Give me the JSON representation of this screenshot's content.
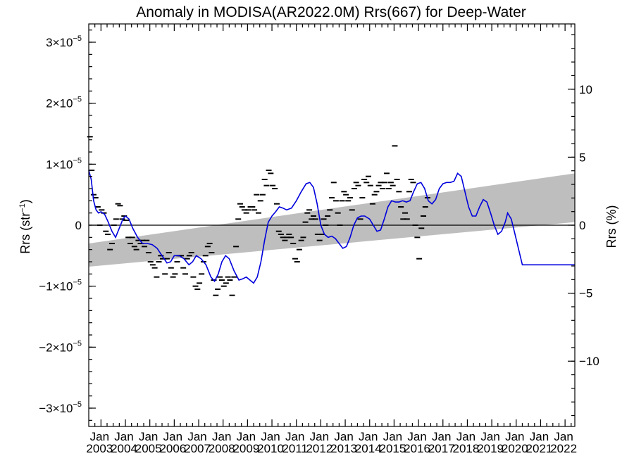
{
  "chart_data": {
    "type": "line",
    "title": "Anomaly in MODISA(AR2022.0M) Rrs(667) for Deep-Water",
    "ylabel": "Rrs (str",
    "ylabel_sup": "−1",
    "ylabel_close": ")",
    "y2label": "Rrs (%)",
    "xlim": [
      2002.5,
      2022.4
    ],
    "ylim": [
      -3.3e-05,
      3.3e-05
    ],
    "y2lim": [
      -14.8,
      14.8
    ],
    "y_ticks": [
      {
        "value": 3e-05,
        "mant": "3×10",
        "exp": "−5"
      },
      {
        "value": 2e-05,
        "mant": "2×10",
        "exp": "−5"
      },
      {
        "value": 1e-05,
        "mant": "1×10",
        "exp": "−5"
      },
      {
        "value": 0,
        "mant": "0",
        "exp": ""
      },
      {
        "value": -1e-05,
        "mant": "−1×10",
        "exp": "−5"
      },
      {
        "value": -2e-05,
        "mant": "−2×10",
        "exp": "−5"
      },
      {
        "value": -3e-05,
        "mant": "−3×10",
        "exp": "−5"
      }
    ],
    "y2_ticks": [
      {
        "value": 10,
        "label": "10"
      },
      {
        "value": 5,
        "label": "5"
      },
      {
        "value": 0,
        "label": "0"
      },
      {
        "value": -5,
        "label": "−5"
      },
      {
        "value": -10,
        "label": "−10"
      }
    ],
    "x_ticks": [
      {
        "value": 2003,
        "month": "Jan",
        "year": "2003"
      },
      {
        "value": 2004,
        "month": "Jan",
        "year": "2004"
      },
      {
        "value": 2005,
        "month": "Jan",
        "year": "2005"
      },
      {
        "value": 2006,
        "month": "Jan",
        "year": "2006"
      },
      {
        "value": 2007,
        "month": "Jan",
        "year": "2007"
      },
      {
        "value": 2008,
        "month": "Jan",
        "year": "2008"
      },
      {
        "value": 2009,
        "month": "Jan",
        "year": "2009"
      },
      {
        "value": 2010,
        "month": "Jan",
        "year": "2010"
      },
      {
        "value": 2011,
        "month": "Jan",
        "year": "2011"
      },
      {
        "value": 2012,
        "month": "Jan",
        "year": "2012"
      },
      {
        "value": 2013,
        "month": "Jan",
        "year": "2013"
      },
      {
        "value": 2014,
        "month": "Jan",
        "year": "2014"
      },
      {
        "value": 2015,
        "month": "Jan",
        "year": "2015"
      },
      {
        "value": 2016,
        "month": "Jan",
        "year": "2016"
      },
      {
        "value": 2017,
        "month": "Jan",
        "year": "2017"
      },
      {
        "value": 2018,
        "month": "Jan",
        "year": "2018"
      },
      {
        "value": 2019,
        "month": "Jan",
        "year": "2019"
      },
      {
        "value": 2020,
        "month": "Jan",
        "year": "2020"
      },
      {
        "value": 2021,
        "month": "Jan",
        "year": "2021"
      },
      {
        "value": 2022,
        "month": "Jan",
        "year": "2022"
      }
    ],
    "trend_band": {
      "x": [
        2002.5,
        2022.4
      ],
      "upper": [
        -3e-06,
        8.5e-06
      ],
      "lower": [
        -6.8e-06,
        5e-07
      ],
      "color": "#bebebe"
    },
    "zero_line": 0,
    "smoothed_series": {
      "color": "#0000dd",
      "points": [
        [
          2002.5,
          9e-06
        ],
        [
          2002.6,
          7.5e-06
        ],
        [
          2002.7,
          4e-06
        ],
        [
          2002.8,
          2.5e-06
        ],
        [
          2002.9,
          2e-06
        ],
        [
          2003.0,
          2.2e-06
        ],
        [
          2003.15,
          1.8e-06
        ],
        [
          2003.3,
          5e-07
        ],
        [
          2003.45,
          -1e-06
        ],
        [
          2003.6,
          -2e-06
        ],
        [
          2003.75,
          -5e-07
        ],
        [
          2003.9,
          1e-06
        ],
        [
          2004.0,
          1.5e-06
        ],
        [
          2004.15,
          1e-06
        ],
        [
          2004.3,
          -5e-07
        ],
        [
          2004.5,
          -2e-06
        ],
        [
          2004.7,
          -3e-06
        ],
        [
          2004.9,
          -3e-06
        ],
        [
          2005.1,
          -3.2e-06
        ],
        [
          2005.3,
          -3.8e-06
        ],
        [
          2005.5,
          -5e-06
        ],
        [
          2005.7,
          -6.2e-06
        ],
        [
          2005.85,
          -6e-06
        ],
        [
          2006.0,
          -5e-06
        ],
        [
          2006.2,
          -5e-06
        ],
        [
          2006.4,
          -5.5e-06
        ],
        [
          2006.6,
          -6.5e-06
        ],
        [
          2006.75,
          -6e-06
        ],
        [
          2006.9,
          -5e-06
        ],
        [
          2007.1,
          -5.5e-06
        ],
        [
          2007.3,
          -6.5e-06
        ],
        [
          2007.5,
          -8.5e-06
        ],
        [
          2007.65,
          -9.2e-06
        ],
        [
          2007.8,
          -8e-06
        ],
        [
          2007.95,
          -6e-06
        ],
        [
          2008.1,
          -5e-06
        ],
        [
          2008.25,
          -5.5e-06
        ],
        [
          2008.45,
          -7.5e-06
        ],
        [
          2008.65,
          -9e-06
        ],
        [
          2008.8,
          -8.8e-06
        ],
        [
          2008.95,
          -8.5e-06
        ],
        [
          2009.1,
          -9e-06
        ],
        [
          2009.25,
          -9.5e-06
        ],
        [
          2009.4,
          -8.5e-06
        ],
        [
          2009.55,
          -6e-06
        ],
        [
          2009.7,
          -2.5e-06
        ],
        [
          2009.85,
          5e-07
        ],
        [
          2010.0,
          1.5e-06
        ],
        [
          2010.15,
          2.2e-06
        ],
        [
          2010.3,
          3e-06
        ],
        [
          2010.45,
          2.8e-06
        ],
        [
          2010.6,
          2.5e-06
        ],
        [
          2010.8,
          2.8e-06
        ],
        [
          2011.0,
          4e-06
        ],
        [
          2011.2,
          5.5e-06
        ],
        [
          2011.4,
          6.8e-06
        ],
        [
          2011.55,
          7e-06
        ],
        [
          2011.7,
          6.2e-06
        ],
        [
          2011.85,
          3.5e-06
        ],
        [
          2012.0,
          0.0
        ],
        [
          2012.15,
          -1.5e-06
        ],
        [
          2012.3,
          -2e-06
        ],
        [
          2012.45,
          -1.8e-06
        ],
        [
          2012.6,
          -2.2e-06
        ],
        [
          2012.75,
          -3e-06
        ],
        [
          2012.9,
          -3.8e-06
        ],
        [
          2013.05,
          -3.5e-06
        ],
        [
          2013.2,
          -2e-06
        ],
        [
          2013.35,
          0.0
        ],
        [
          2013.5,
          1.2e-06
        ],
        [
          2013.65,
          1.5e-06
        ],
        [
          2013.8,
          1.5e-06
        ],
        [
          2014.0,
          1e-06
        ],
        [
          2014.15,
          0.0
        ],
        [
          2014.3,
          -1e-06
        ],
        [
          2014.45,
          -8e-07
        ],
        [
          2014.6,
          1e-06
        ],
        [
          2014.75,
          3e-06
        ],
        [
          2014.9,
          4e-06
        ],
        [
          2015.05,
          3.8e-06
        ],
        [
          2015.2,
          3.8e-06
        ],
        [
          2015.35,
          4e-06
        ],
        [
          2015.5,
          3.8e-06
        ],
        [
          2015.65,
          4e-06
        ],
        [
          2015.8,
          5.5e-06
        ],
        [
          2015.95,
          6.8e-06
        ],
        [
          2016.1,
          7e-06
        ],
        [
          2016.25,
          6e-06
        ],
        [
          2016.4,
          4e-06
        ],
        [
          2016.55,
          3.5e-06
        ],
        [
          2016.7,
          4.2e-06
        ],
        [
          2016.85,
          6e-06
        ],
        [
          2017.0,
          6.8e-06
        ],
        [
          2017.15,
          7e-06
        ],
        [
          2017.3,
          7e-06
        ],
        [
          2017.45,
          7.2e-06
        ],
        [
          2017.6,
          8.5e-06
        ],
        [
          2017.75,
          8e-06
        ],
        [
          2017.9,
          5.5e-06
        ],
        [
          2018.05,
          3e-06
        ],
        [
          2018.2,
          1.5e-06
        ],
        [
          2018.35,
          1.5e-06
        ],
        [
          2018.5,
          3e-06
        ],
        [
          2018.65,
          4.2e-06
        ],
        [
          2018.8,
          3.8e-06
        ],
        [
          2018.95,
          2e-06
        ],
        [
          2019.1,
          0.0
        ],
        [
          2019.25,
          -1.5e-06
        ],
        [
          2019.4,
          -1e-06
        ],
        [
          2019.55,
          5e-07
        ],
        [
          2019.65,
          2e-06
        ],
        [
          2019.8,
          1e-06
        ],
        [
          2019.95,
          -1.5e-06
        ],
        [
          2020.1,
          -4e-06
        ],
        [
          2020.25,
          -6.5e-06
        ],
        [
          2022.4,
          -6.5e-06
        ]
      ]
    },
    "monthly_marks": {
      "color": "#000000",
      "points": [
        [
          2002.55,
          1.45e-05
        ],
        [
          2002.62,
          9e-06
        ],
        [
          2002.7,
          5e-06
        ],
        [
          2002.78,
          4.5e-06
        ],
        [
          2002.87,
          3e-06
        ],
        [
          2002.95,
          0.0
        ],
        [
          2003.03,
          2.5e-06
        ],
        [
          2003.12,
          2e-06
        ],
        [
          2003.2,
          -1e-06
        ],
        [
          2003.28,
          -1.5e-06
        ],
        [
          2003.37,
          -4e-06
        ],
        [
          2003.45,
          -3e-06
        ],
        [
          2003.53,
          0.0
        ],
        [
          2003.62,
          1e-06
        ],
        [
          2003.7,
          3.5e-06
        ],
        [
          2003.78,
          3.2e-06
        ],
        [
          2003.87,
          1e-06
        ],
        [
          2003.95,
          1.5e-06
        ],
        [
          2004.03,
          8e-07
        ],
        [
          2004.12,
          -2e-06
        ],
        [
          2004.2,
          -3e-06
        ],
        [
          2004.28,
          -2e-06
        ],
        [
          2004.37,
          -3.5e-06
        ],
        [
          2004.45,
          -4e-06
        ],
        [
          2004.53,
          -2.5e-06
        ],
        [
          2004.62,
          -3e-06
        ],
        [
          2004.7,
          -2.5e-06
        ],
        [
          2004.78,
          -3.5e-06
        ],
        [
          2004.87,
          -2.5e-06
        ],
        [
          2004.95,
          -4.5e-06
        ],
        [
          2005.03,
          -6e-06
        ],
        [
          2005.12,
          -6.5e-06
        ],
        [
          2005.2,
          -7e-06
        ],
        [
          2005.28,
          -8.5e-06
        ],
        [
          2005.37,
          -6e-06
        ],
        [
          2005.45,
          -5e-06
        ],
        [
          2005.53,
          -5.5e-06
        ],
        [
          2005.62,
          -8e-06
        ],
        [
          2005.7,
          -5.5e-06
        ],
        [
          2005.78,
          -4.5e-06
        ],
        [
          2005.87,
          -7e-06
        ],
        [
          2005.95,
          -8.5e-06
        ],
        [
          2006.03,
          -8e-06
        ],
        [
          2006.12,
          -6e-06
        ],
        [
          2006.2,
          -5e-06
        ],
        [
          2006.28,
          -5e-06
        ],
        [
          2006.37,
          -7e-06
        ],
        [
          2006.45,
          -8e-06
        ],
        [
          2006.53,
          -5.5e-06
        ],
        [
          2006.62,
          -5e-06
        ],
        [
          2006.7,
          -4.5e-06
        ],
        [
          2006.78,
          -8.5e-06
        ],
        [
          2006.87,
          -1e-05
        ],
        [
          2006.95,
          -1.05e-05
        ],
        [
          2007.03,
          -9.5e-06
        ],
        [
          2007.12,
          -8e-06
        ],
        [
          2007.2,
          -6e-06
        ],
        [
          2007.28,
          -5e-06
        ],
        [
          2007.37,
          -3.5e-06
        ],
        [
          2007.45,
          -3e-06
        ],
        [
          2007.53,
          -4.5e-06
        ],
        [
          2007.62,
          -9e-06
        ],
        [
          2007.7,
          -1.15e-05
        ],
        [
          2007.78,
          -1.05e-05
        ],
        [
          2007.87,
          -8.5e-06
        ],
        [
          2007.95,
          -9e-06
        ],
        [
          2008.03,
          -1e-05
        ],
        [
          2008.12,
          -9.5e-06
        ],
        [
          2008.2,
          -8.5e-06
        ],
        [
          2008.28,
          -9e-06
        ],
        [
          2008.37,
          -1.15e-05
        ],
        [
          2008.45,
          -8.5e-06
        ],
        [
          2008.53,
          -3.5e-06
        ],
        [
          2008.62,
          1e-06
        ],
        [
          2008.7,
          3.5e-06
        ],
        [
          2008.78,
          3e-06
        ],
        [
          2008.87,
          2.5e-06
        ],
        [
          2008.95,
          2e-06
        ],
        [
          2009.03,
          2.5e-06
        ],
        [
          2009.12,
          3e-06
        ],
        [
          2009.2,
          3e-06
        ],
        [
          2009.28,
          2.5e-06
        ],
        [
          2009.37,
          5e-06
        ],
        [
          2009.45,
          2e-06
        ],
        [
          2009.53,
          4e-06
        ],
        [
          2009.62,
          5e-06
        ],
        [
          2009.7,
          7.5e-06
        ],
        [
          2009.78,
          6.5e-06
        ],
        [
          2009.87,
          9e-06
        ],
        [
          2009.95,
          8.5e-06
        ],
        [
          2010.03,
          6.5e-06
        ],
        [
          2010.12,
          6e-06
        ],
        [
          2010.2,
          3.5e-06
        ],
        [
          2010.28,
          -1e-06
        ],
        [
          2010.37,
          -1.5e-06
        ],
        [
          2010.45,
          -2e-06
        ],
        [
          2010.53,
          -2.5e-06
        ],
        [
          2010.62,
          -2e-06
        ],
        [
          2010.7,
          -1.5e-06
        ],
        [
          2010.78,
          -2e-06
        ],
        [
          2010.87,
          -3e-06
        ],
        [
          2010.95,
          -5.5e-06
        ],
        [
          2011.03,
          -6e-06
        ],
        [
          2011.12,
          -4e-06
        ],
        [
          2011.2,
          -2.5e-06
        ],
        [
          2011.28,
          -2e-06
        ],
        [
          2011.37,
          5e-07
        ],
        [
          2011.45,
          2e-06
        ],
        [
          2011.53,
          2.5e-06
        ],
        [
          2011.62,
          1e-06
        ],
        [
          2011.7,
          1.5e-06
        ],
        [
          2011.78,
          1e-06
        ],
        [
          2011.87,
          -1.5e-06
        ],
        [
          2011.95,
          -2.5e-06
        ],
        [
          2012.03,
          -1.5e-06
        ],
        [
          2012.12,
          1e-06
        ],
        [
          2012.2,
          0.0
        ],
        [
          2012.28,
          1.5e-06
        ],
        [
          2012.37,
          2.5e-06
        ],
        [
          2012.45,
          4.5e-06
        ],
        [
          2012.53,
          7e-06
        ],
        [
          2012.62,
          4e-06
        ],
        [
          2012.7,
          2e-06
        ],
        [
          2012.78,
          0.0
        ],
        [
          2012.87,
          4e-06
        ],
        [
          2012.95,
          5.5e-06
        ],
        [
          2013.03,
          5e-06
        ],
        [
          2013.12,
          4e-06
        ],
        [
          2013.2,
          4.5e-06
        ],
        [
          2013.28,
          2.5e-06
        ],
        [
          2013.37,
          6e-06
        ],
        [
          2013.45,
          7e-06
        ],
        [
          2013.53,
          6.5e-06
        ],
        [
          2013.62,
          1e-06
        ],
        [
          2013.7,
          4.5e-06
        ],
        [
          2013.78,
          7.5e-06
        ],
        [
          2013.87,
          7e-06
        ],
        [
          2013.95,
          8e-06
        ],
        [
          2014.03,
          6.5e-06
        ],
        [
          2014.12,
          3.5e-06
        ],
        [
          2014.2,
          5e-06
        ],
        [
          2014.28,
          5.5e-06
        ],
        [
          2014.37,
          6.5e-06
        ],
        [
          2014.45,
          7e-06
        ],
        [
          2014.53,
          6e-06
        ],
        [
          2014.62,
          7e-06
        ],
        [
          2014.7,
          8.5e-06
        ],
        [
          2014.78,
          6e-06
        ],
        [
          2014.87,
          7e-06
        ],
        [
          2014.95,
          6.5e-06
        ],
        [
          2015.03,
          1.3e-05
        ],
        [
          2015.12,
          7.5e-06
        ],
        [
          2015.2,
          5.5e-06
        ],
        [
          2015.28,
          3e-06
        ],
        [
          2015.37,
          1e-06
        ],
        [
          2015.45,
          2e-06
        ],
        [
          2015.53,
          1e-06
        ],
        [
          2015.62,
          5.5e-06
        ],
        [
          2015.7,
          7.5e-06
        ],
        [
          2015.78,
          7e-06
        ],
        [
          2015.87,
          0.0
        ],
        [
          2015.95,
          -2e-06
        ],
        [
          2016.03,
          -5.5e-06
        ],
        [
          2016.12,
          -5e-07
        ],
        [
          2016.2,
          1.5e-06
        ],
        [
          2016.28,
          3e-06
        ],
        [
          2016.37,
          4.5e-06
        ]
      ]
    }
  }
}
